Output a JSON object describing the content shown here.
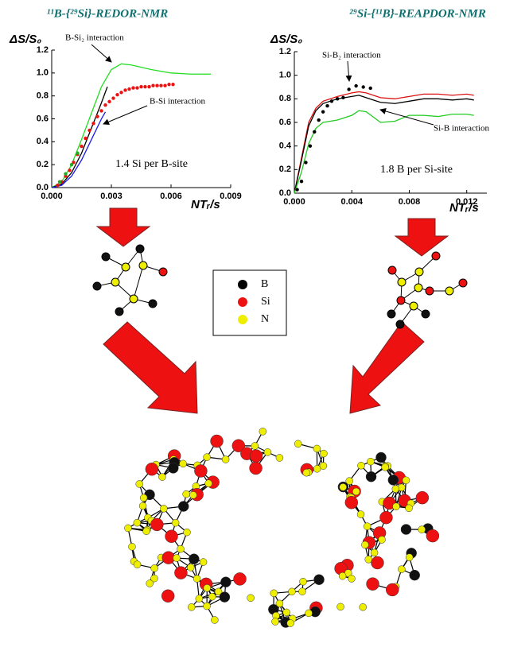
{
  "chart_data": [
    {
      "type": "line",
      "title": "¹¹B-{²⁹Si}-REDOR-NMR",
      "y_label": "ΔS/S₀",
      "x_label": "NTᵣ/s",
      "xlim": [
        0,
        0.009
      ],
      "xticks": [
        {
          "value": 0,
          "label": "0.000"
        },
        {
          "value": 0.003,
          "label": "0.003"
        },
        {
          "value": 0.006,
          "label": "0.006"
        },
        {
          "value": 0.009,
          "label": "0.009"
        }
      ],
      "ylim": [
        0,
        1.2
      ],
      "yticks": [
        {
          "value": 0,
          "label": "0.0"
        },
        0.2,
        0.4,
        0.6,
        0.8,
        {
          "value": 1,
          "label": "1.0"
        },
        1.2
      ],
      "annotations": [
        "B-Si₂ interaction",
        "B-Si interaction",
        "1.4 Si per B-site"
      ],
      "series": [
        {
          "mode": "line",
          "color": "#22dd22",
          "x": [
            0,
            0.0005,
            0.001,
            0.0015,
            0.002,
            0.0025,
            0.003,
            0.0035,
            0.004,
            0.005,
            0.006,
            0.007,
            0.008
          ],
          "values": [
            0,
            0.05,
            0.2,
            0.42,
            0.65,
            0.88,
            1.03,
            1.08,
            1.07,
            1.03,
            1.0,
            0.99,
            0.99
          ]
        },
        {
          "mode": "line",
          "color": "#000000",
          "x": [
            0,
            0.0005,
            0.001,
            0.0015,
            0.002,
            0.0025,
            0.0028
          ],
          "values": [
            0,
            0.03,
            0.13,
            0.3,
            0.52,
            0.74,
            0.88
          ]
        },
        {
          "mode": "line",
          "color": "#1a1aee",
          "x": [
            0,
            0.0005,
            0.001,
            0.0015,
            0.002,
            0.0025,
            0.0027
          ],
          "values": [
            0,
            0.02,
            0.1,
            0.24,
            0.42,
            0.6,
            0.66
          ]
        },
        {
          "mode": "markers",
          "color": "#ee1111",
          "x": [
            0.0003,
            0.0005,
            0.0007,
            0.0009,
            0.0011,
            0.0013,
            0.0015,
            0.0017,
            0.0019,
            0.0021,
            0.0023,
            0.0025,
            0.0027,
            0.0029,
            0.0031,
            0.0033,
            0.0035,
            0.0037,
            0.0039,
            0.0041,
            0.0043,
            0.0045,
            0.0047,
            0.0049,
            0.0051,
            0.0053,
            0.0055,
            0.0057,
            0.0059,
            0.0061
          ],
          "values": [
            0.02,
            0.05,
            0.1,
            0.15,
            0.22,
            0.29,
            0.36,
            0.43,
            0.5,
            0.56,
            0.62,
            0.67,
            0.72,
            0.75,
            0.78,
            0.81,
            0.83,
            0.85,
            0.86,
            0.87,
            0.87,
            0.88,
            0.88,
            0.88,
            0.89,
            0.89,
            0.89,
            0.89,
            0.9,
            0.9
          ]
        },
        {
          "mode": "markers",
          "color": "#22aa22",
          "x": [
            0.0004,
            0.0007,
            0.001,
            0.0013
          ],
          "values": [
            0.05,
            0.12,
            0.2,
            0.3
          ]
        }
      ]
    },
    {
      "type": "line",
      "title": "²⁹Si-{¹¹B}-REAPDOR-NMR",
      "y_label": "ΔS/S₀",
      "x_label": "NTᵣ/s",
      "xlim": [
        0,
        0.0134
      ],
      "xticks": [
        {
          "value": 0,
          "label": "0.000"
        },
        {
          "value": 0.004,
          "label": "0.004"
        },
        {
          "value": 0.008,
          "label": "0.008"
        },
        {
          "value": 0.012,
          "label": "0.012"
        }
      ],
      "ylim": [
        0,
        1.2
      ],
      "yticks": [
        {
          "value": 0,
          "label": "0.0"
        },
        0.2,
        0.4,
        0.6,
        0.8,
        {
          "value": 1,
          "label": "1.0"
        },
        1.2
      ],
      "annotations": [
        "Si-B₂ interaction",
        "Si-B interaction",
        "1.8 B per Si-site"
      ],
      "series": [
        {
          "mode": "line",
          "color": "#dd1111",
          "x": [
            0,
            0.0005,
            0.001,
            0.0015,
            0.002,
            0.003,
            0.004,
            0.0045,
            0.005,
            0.006,
            0.007,
            0.008,
            0.009,
            0.01,
            0.011,
            0.012,
            0.0125
          ],
          "values": [
            0,
            0.3,
            0.6,
            0.72,
            0.78,
            0.82,
            0.85,
            0.86,
            0.85,
            0.81,
            0.8,
            0.82,
            0.84,
            0.84,
            0.83,
            0.84,
            0.83
          ]
        },
        {
          "mode": "line",
          "color": "#000000",
          "x": [
            0,
            0.0005,
            0.001,
            0.0015,
            0.002,
            0.003,
            0.004,
            0.0045,
            0.005,
            0.006,
            0.007,
            0.008,
            0.009,
            0.01,
            0.011,
            0.012,
            0.0125
          ],
          "values": [
            0,
            0.28,
            0.57,
            0.7,
            0.76,
            0.8,
            0.82,
            0.83,
            0.81,
            0.77,
            0.76,
            0.78,
            0.8,
            0.8,
            0.79,
            0.8,
            0.79
          ]
        },
        {
          "mode": "line",
          "color": "#22cc22",
          "x": [
            0,
            0.0005,
            0.001,
            0.0015,
            0.002,
            0.003,
            0.004,
            0.0045,
            0.005,
            0.006,
            0.007,
            0.008,
            0.009,
            0.01,
            0.011,
            0.012,
            0.0125
          ],
          "values": [
            0,
            0.18,
            0.42,
            0.55,
            0.6,
            0.62,
            0.66,
            0.7,
            0.69,
            0.6,
            0.61,
            0.66,
            0.66,
            0.65,
            0.67,
            0.67,
            0.66
          ]
        },
        {
          "mode": "markers",
          "color": "#000000",
          "x": [
            0.0002,
            0.0005,
            0.0008,
            0.0011,
            0.0014,
            0.0017,
            0.002,
            0.0023,
            0.0026,
            0.003,
            0.0034,
            0.0038,
            0.0043,
            0.0048,
            0.0053
          ],
          "values": [
            0.03,
            0.1,
            0.26,
            0.4,
            0.52,
            0.62,
            0.69,
            0.74,
            0.78,
            0.8,
            0.81,
            0.88,
            0.91,
            0.9,
            0.89
          ]
        }
      ]
    }
  ],
  "legend_box": {
    "items": [
      {
        "label": "B",
        "color": "#000000"
      },
      {
        "label": "Si",
        "color": "#ee1111"
      },
      {
        "label": "N",
        "color": "#eeee00"
      }
    ]
  }
}
